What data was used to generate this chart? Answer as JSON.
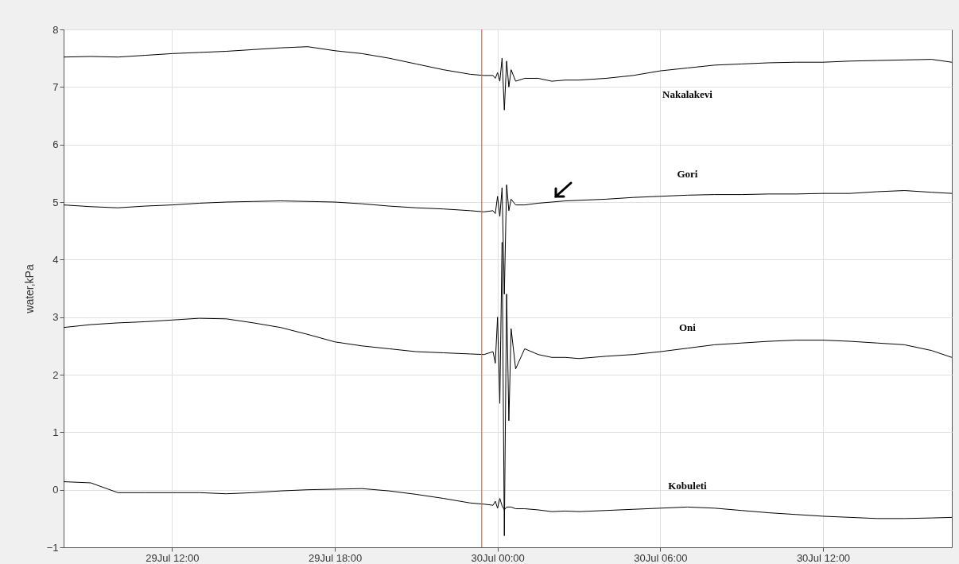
{
  "chart_data": {
    "type": "line",
    "ylabel": "water,kPa",
    "x": [
      "--07-29T08:00",
      "--07-29T09:00",
      "--07-29T10:00",
      "--07-29T11:00",
      "--07-29T12:00",
      "--07-29T13:00",
      "--07-29T14:00",
      "--07-29T15:00",
      "--07-29T16:00",
      "--07-29T17:00",
      "--07-29T18:00",
      "--07-29T19:00",
      "--07-29T20:00",
      "--07-29T21:00",
      "--07-29T22:00",
      "--07-29T23:00",
      "--07-29T23:30",
      "--07-29T23:50",
      "--07-29T23:55",
      "--07-30T00:00",
      "--07-30T00:05",
      "--07-30T00:10",
      "--07-30T00:15",
      "--07-30T00:20",
      "--07-30T00:25",
      "--07-30T00:30",
      "--07-30T00:40",
      "--07-30T01:00",
      "--07-30T01:30",
      "--07-30T02:00",
      "--07-30T02:30",
      "--07-30T03:00",
      "--07-30T04:00",
      "--07-30T05:00",
      "--07-30T06:00",
      "--07-30T07:00",
      "--07-30T08:00",
      "--07-30T09:00",
      "--07-30T10:00",
      "--07-30T11:00",
      "--07-30T12:00",
      "--07-30T13:00",
      "--07-30T14:00",
      "--07-30T15:00",
      "--07-30T16:00",
      "--07-30T16:45"
    ],
    "series": [
      {
        "name": "Nakalakevi",
        "color": "#000000",
        "values": [
          7.52,
          7.53,
          7.52,
          7.55,
          7.58,
          7.6,
          7.62,
          7.65,
          7.68,
          7.7,
          7.63,
          7.58,
          7.5,
          7.4,
          7.3,
          7.22,
          7.2,
          7.2,
          7.15,
          7.25,
          7.1,
          7.5,
          6.6,
          7.45,
          7.0,
          7.3,
          7.1,
          7.15,
          7.15,
          7.1,
          7.12,
          7.12,
          7.15,
          7.2,
          7.28,
          7.33,
          7.38,
          7.4,
          7.42,
          7.43,
          7.43,
          7.45,
          7.46,
          7.47,
          7.48,
          7.43
        ]
      },
      {
        "name": "Gori",
        "color": "#000000",
        "values": [
          4.95,
          4.92,
          4.9,
          4.93,
          4.95,
          4.98,
          5.0,
          5.01,
          5.02,
          5.01,
          5.0,
          4.97,
          4.93,
          4.9,
          4.88,
          4.85,
          4.83,
          4.85,
          4.8,
          5.1,
          4.75,
          5.25,
          3.4,
          5.3,
          4.85,
          5.05,
          4.95,
          4.95,
          4.98,
          5.0,
          5.02,
          5.03,
          5.05,
          5.08,
          5.1,
          5.12,
          5.13,
          5.13,
          5.14,
          5.14,
          5.15,
          5.15,
          5.18,
          5.2,
          5.17,
          5.15
        ]
      },
      {
        "name": "Oni",
        "color": "#000000",
        "values": [
          2.82,
          2.87,
          2.9,
          2.92,
          2.95,
          2.98,
          2.97,
          2.9,
          2.82,
          2.7,
          2.57,
          2.5,
          2.45,
          2.4,
          2.38,
          2.36,
          2.35,
          2.4,
          2.2,
          3.0,
          1.5,
          4.3,
          -0.8,
          3.4,
          1.2,
          2.8,
          2.1,
          2.45,
          2.35,
          2.3,
          2.3,
          2.28,
          2.32,
          2.35,
          2.4,
          2.46,
          2.52,
          2.55,
          2.58,
          2.6,
          2.6,
          2.58,
          2.55,
          2.52,
          2.42,
          2.3
        ]
      },
      {
        "name": "Kobuleti",
        "color": "#000000",
        "values": [
          0.14,
          0.12,
          -0.05,
          -0.05,
          -0.05,
          -0.05,
          -0.07,
          -0.05,
          -0.02,
          0.0,
          0.01,
          0.02,
          -0.02,
          -0.08,
          -0.15,
          -0.23,
          -0.25,
          -0.27,
          -0.2,
          -0.32,
          -0.15,
          -0.28,
          -0.35,
          -0.3,
          -0.3,
          -0.3,
          -0.33,
          -0.33,
          -0.35,
          -0.38,
          -0.37,
          -0.38,
          -0.36,
          -0.34,
          -0.32,
          -0.3,
          -0.32,
          -0.36,
          -0.4,
          -0.43,
          -0.46,
          -0.48,
          -0.5,
          -0.5,
          -0.49,
          -0.48
        ]
      }
    ],
    "xlim": [
      "--07-29T08:00",
      "--07-30T16:45"
    ],
    "xticks": [
      {
        "value": "--07-29T12:00",
        "label": "29Jul 12:00"
      },
      {
        "value": "--07-29T18:00",
        "label": "29Jul 18:00"
      },
      {
        "value": "--07-30T00:00",
        "label": "30Jul 00:00"
      },
      {
        "value": "--07-30T06:00",
        "label": "30Jul 06:00"
      },
      {
        "value": "--07-30T12:00",
        "label": "30Jul 12:00"
      }
    ],
    "ylim": [
      -1,
      8
    ],
    "yticks": [
      -1,
      0,
      1,
      2,
      3,
      4,
      5,
      6,
      7,
      8
    ],
    "ref_lines": [
      {
        "axis": "x",
        "value": "--07-29T23:25",
        "color": "#e06060"
      }
    ],
    "grid": true,
    "line_style": "solid"
  }
}
